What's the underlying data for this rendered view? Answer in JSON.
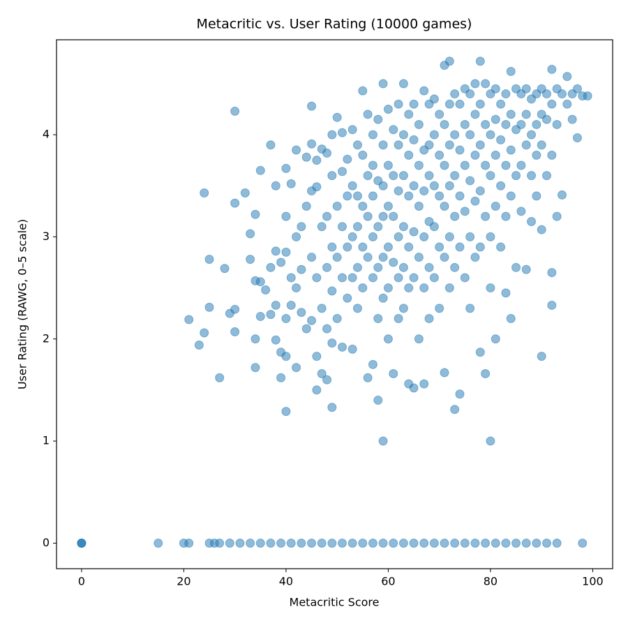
{
  "chart_data": {
    "type": "scatter",
    "title": "Metacritic vs. User Rating (10000 games)",
    "x_label": "Metacritic Score",
    "y_label": "User Rating (RAWG, 0–5 scale)",
    "color": "#1f77b4",
    "grid": false,
    "xlim": [
      -4.9,
      103.9
    ],
    "ylim": [
      -0.25,
      4.93
    ],
    "xticks": [
      0,
      20,
      40,
      60,
      80,
      100
    ],
    "yticks": [
      0,
      1,
      2,
      3,
      4
    ],
    "x": [
      0,
      0,
      0,
      15,
      20,
      21,
      25,
      26,
      27,
      29,
      31,
      33,
      35,
      37,
      39,
      41,
      43,
      45,
      47,
      49,
      51,
      53,
      55,
      57,
      59,
      61,
      63,
      65,
      67,
      69,
      71,
      73,
      75,
      77,
      79,
      81,
      83,
      85,
      87,
      89,
      91,
      93,
      98,
      24,
      21,
      23,
      24,
      25,
      25,
      27,
      28,
      29,
      30,
      30,
      30,
      30,
      32,
      33,
      33,
      34,
      34,
      34,
      34,
      35,
      35,
      35,
      36,
      37,
      37,
      37,
      38,
      38,
      38,
      38,
      39,
      39,
      39,
      40,
      40,
      40,
      40,
      40,
      40,
      41,
      41,
      41,
      42,
      42,
      42,
      42,
      43,
      43,
      43,
      44,
      44,
      44,
      45,
      45,
      45,
      45,
      45,
      46,
      46,
      46,
      46,
      46,
      47,
      47,
      47,
      47,
      48,
      48,
      48,
      48,
      48,
      49,
      49,
      49,
      49,
      49,
      49,
      50,
      50,
      50,
      50,
      51,
      51,
      51,
      51,
      51,
      52,
      52,
      52,
      52,
      53,
      53,
      53,
      53,
      53,
      54,
      54,
      54,
      54,
      54,
      55,
      55,
      55,
      55,
      55,
      56,
      56,
      56,
      56,
      56,
      57,
      57,
      57,
      57,
      57,
      57,
      58,
      58,
      58,
      58,
      58,
      58,
      59,
      59,
      59,
      59,
      59,
      59,
      59,
      60,
      60,
      60,
      60,
      60,
      60,
      61,
      61,
      61,
      61,
      61,
      62,
      62,
      62,
      62,
      62,
      62,
      63,
      63,
      63,
      63,
      63,
      63,
      64,
      64,
      64,
      64,
      64,
      64,
      65,
      65,
      65,
      65,
      65,
      65,
      66,
      66,
      66,
      66,
      66,
      67,
      67,
      67,
      67,
      67,
      67,
      68,
      68,
      68,
      68,
      68,
      68,
      69,
      69,
      69,
      69,
      69,
      70,
      70,
      70,
      70,
      70,
      71,
      71,
      71,
      71,
      71,
      71,
      72,
      72,
      72,
      72,
      72,
      72,
      73,
      73,
      73,
      73,
      73,
      73,
      74,
      74,
      74,
      74,
      74,
      75,
      75,
      75,
      75,
      75,
      76,
      76,
      76,
      76,
      76,
      77,
      77,
      77,
      77,
      77,
      78,
      78,
      78,
      78,
      78,
      78,
      79,
      79,
      79,
      79,
      79,
      80,
      80,
      80,
      80,
      80,
      80,
      81,
      81,
      81,
      81,
      81,
      82,
      82,
      82,
      82,
      83,
      83,
      83,
      83,
      83,
      84,
      84,
      84,
      84,
      84,
      85,
      85,
      85,
      85,
      86,
      86,
      86,
      86,
      87,
      87,
      87,
      87,
      88,
      88,
      88,
      88,
      89,
      89,
      89,
      89,
      90,
      90,
      90,
      90,
      90,
      91,
      91,
      91,
      92,
      92,
      92,
      92,
      92,
      93,
      93,
      93,
      94,
      94,
      95,
      95,
      96,
      96,
      97,
      97,
      98,
      99
    ],
    "values": [
      0,
      0,
      0,
      0,
      0,
      0,
      0,
      0,
      0,
      0,
      0,
      0,
      0,
      0,
      0,
      0,
      0,
      0,
      0,
      0,
      0,
      0,
      0,
      0,
      0,
      0,
      0,
      0,
      0,
      0,
      0,
      0,
      0,
      0,
      0,
      0,
      0,
      0,
      0,
      0,
      0,
      0,
      0,
      3.43,
      2.19,
      1.94,
      2.06,
      2.78,
      2.31,
      1.62,
      2.69,
      2.25,
      4.23,
      3.33,
      2.29,
      2.07,
      3.43,
      3.03,
      2.78,
      3.22,
      2.57,
      2.0,
      1.72,
      3.65,
      2.56,
      2.22,
      2.48,
      3.9,
      2.7,
      2.24,
      3.5,
      2.86,
      2.33,
      1.99,
      2.75,
      1.62,
      1.87,
      3.67,
      3.2,
      2.85,
      2.2,
      1.29,
      1.83,
      3.52,
      2.6,
      2.33,
      3.85,
      3.0,
      2.5,
      1.72,
      3.1,
      2.26,
      2.68,
      3.78,
      3.3,
      2.1,
      4.28,
      3.91,
      3.45,
      2.8,
      2.18,
      3.75,
      3.49,
      2.6,
      1.5,
      1.83,
      3.86,
      3.1,
      2.3,
      1.66,
      3.82,
      3.2,
      2.7,
      2.1,
      1.6,
      4.0,
      3.6,
      2.9,
      2.47,
      1.33,
      1.96,
      4.17,
      3.3,
      2.8,
      2.2,
      4.02,
      3.64,
      3.1,
      2.6,
      1.92,
      3.76,
      3.4,
      2.9,
      2.4,
      4.05,
      3.5,
      3.0,
      2.6,
      1.9,
      3.9,
      3.4,
      3.1,
      2.7,
      2.3,
      4.43,
      3.8,
      3.3,
      2.9,
      2.5,
      4.2,
      3.6,
      3.2,
      2.8,
      1.62,
      4.0,
      3.7,
      3.4,
      3.0,
      2.6,
      1.75,
      4.15,
      3.55,
      3.1,
      2.7,
      2.2,
      1.4,
      4.5,
      3.9,
      3.5,
      3.2,
      2.8,
      2.4,
      1.0,
      4.25,
      3.7,
      3.3,
      2.9,
      2.5,
      2.0,
      4.05,
      3.6,
      3.2,
      2.75,
      1.66,
      4.3,
      3.9,
      3.45,
      3.0,
      2.6,
      2.2,
      4.5,
      4.0,
      3.6,
      3.1,
      2.7,
      2.3,
      4.2,
      3.8,
      3.4,
      2.9,
      2.5,
      1.56,
      4.3,
      3.95,
      3.5,
      3.05,
      2.6,
      1.52,
      4.1,
      3.7,
      3.3,
      2.8,
      2.0,
      4.43,
      3.85,
      3.45,
      3.0,
      2.5,
      1.56,
      4.3,
      3.9,
      3.6,
      3.15,
      2.7,
      2.2,
      4.35,
      4.0,
      3.5,
      3.1,
      2.6,
      4.2,
      3.8,
      3.4,
      2.9,
      2.3,
      4.68,
      4.1,
      3.7,
      3.3,
      2.8,
      1.67,
      4.72,
      4.3,
      3.9,
      3.5,
      3.0,
      2.5,
      4.4,
      4.0,
      3.6,
      3.2,
      2.7,
      1.31,
      4.3,
      3.85,
      3.4,
      2.9,
      1.46,
      4.45,
      4.1,
      3.7,
      3.25,
      2.6,
      4.4,
      4.0,
      3.55,
      3.0,
      2.3,
      4.5,
      4.2,
      3.8,
      3.35,
      2.8,
      4.72,
      4.3,
      3.9,
      3.45,
      2.9,
      1.87,
      4.5,
      4.1,
      3.7,
      3.2,
      1.66,
      4.4,
      4.0,
      3.6,
      3.0,
      2.5,
      1.0,
      4.45,
      4.15,
      3.8,
      3.3,
      2.0,
      4.3,
      3.95,
      3.5,
      2.9,
      4.4,
      4.1,
      3.7,
      3.2,
      2.45,
      4.62,
      4.2,
      3.85,
      3.4,
      2.2,
      4.45,
      4.05,
      3.6,
      2.7,
      4.4,
      4.1,
      3.7,
      3.25,
      4.45,
      4.2,
      3.9,
      2.68,
      4.35,
      4.0,
      3.6,
      3.15,
      4.4,
      4.1,
      3.8,
      3.4,
      4.45,
      4.2,
      3.9,
      3.07,
      1.83,
      4.4,
      4.15,
      3.6,
      4.64,
      4.3,
      3.8,
      2.65,
      2.33,
      4.45,
      4.1,
      3.2,
      4.4,
      3.41,
      4.57,
      4.3,
      4.4,
      4.15,
      4.45,
      3.97,
      4.38,
      4.38
    ]
  }
}
